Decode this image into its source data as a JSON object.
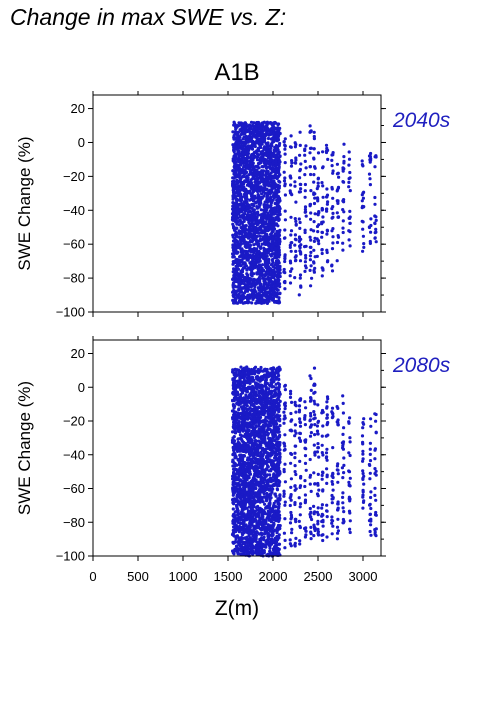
{
  "page": {
    "title": "Change in max SWE vs. Z:",
    "scenario": "A1B"
  },
  "colors": {
    "points": "#1a1ac6",
    "panel_label": "#1f1fbf",
    "axes": "#000000"
  },
  "chart_data": [
    {
      "type": "scatter",
      "panel_label": "2040s",
      "ylabel": "SWE Change (%)",
      "xlabel": "",
      "xlim": [
        0,
        3200
      ],
      "ylim": [
        -100,
        28
      ],
      "yticks": [
        20,
        0,
        -20,
        -40,
        -60,
        -80,
        -100
      ],
      "xticks": [
        0,
        500,
        1000,
        1500,
        2000,
        2500,
        3000
      ],
      "grid": false,
      "dense_band": {
        "x": [
          1550,
          2080
        ],
        "y": [
          -95,
          12
        ]
      },
      "strips": [
        {
          "x": 2130,
          "y": [
            -90,
            8
          ]
        },
        {
          "x": 2200,
          "y": [
            -85,
            5
          ]
        },
        {
          "x": 2250,
          "y": [
            -80,
            0
          ]
        },
        {
          "x": 2300,
          "y": [
            -90,
            8
          ]
        },
        {
          "x": 2360,
          "y": [
            -80,
            0
          ]
        },
        {
          "x": 2420,
          "y": [
            -85,
            10
          ]
        },
        {
          "x": 2460,
          "y": [
            -80,
            10
          ]
        },
        {
          "x": 2500,
          "y": [
            -75,
            -5
          ]
        },
        {
          "x": 2550,
          "y": [
            -80,
            -5
          ]
        },
        {
          "x": 2600,
          "y": [
            -75,
            0
          ]
        },
        {
          "x": 2660,
          "y": [
            -80,
            -5
          ]
        },
        {
          "x": 2720,
          "y": [
            -70,
            -5
          ]
        },
        {
          "x": 2780,
          "y": [
            -65,
            0
          ]
        },
        {
          "x": 2850,
          "y": [
            -65,
            -5
          ]
        },
        {
          "x": 3000,
          "y": [
            -65,
            -5
          ]
        },
        {
          "x": 3080,
          "y": [
            -60,
            -5
          ]
        },
        {
          "x": 3140,
          "y": [
            -60,
            -5
          ]
        }
      ]
    },
    {
      "type": "scatter",
      "panel_label": "2080s",
      "ylabel": "SWE Change (%)",
      "xlabel": "Z(m)",
      "xlim": [
        0,
        3200
      ],
      "ylim": [
        -100,
        28
      ],
      "yticks": [
        20,
        0,
        -20,
        -40,
        -60,
        -80,
        -100
      ],
      "xticks": [
        0,
        500,
        1000,
        1500,
        2000,
        2500,
        3000
      ],
      "xticklabels": [
        "0",
        "500",
        "1000",
        "1500",
        "2000",
        "2500",
        "3000"
      ],
      "grid": false,
      "dense_band": {
        "x": [
          1550,
          2080
        ],
        "y": [
          -100,
          12
        ]
      },
      "strips": [
        {
          "x": 2130,
          "y": [
            -98,
            5
          ]
        },
        {
          "x": 2200,
          "y": [
            -95,
            0
          ]
        },
        {
          "x": 2250,
          "y": [
            -95,
            -5
          ]
        },
        {
          "x": 2300,
          "y": [
            -95,
            5
          ]
        },
        {
          "x": 2360,
          "y": [
            -90,
            -5
          ]
        },
        {
          "x": 2420,
          "y": [
            -92,
            10
          ]
        },
        {
          "x": 2460,
          "y": [
            -90,
            12
          ]
        },
        {
          "x": 2500,
          "y": [
            -90,
            -5
          ]
        },
        {
          "x": 2550,
          "y": [
            -92,
            -10
          ]
        },
        {
          "x": 2600,
          "y": [
            -90,
            -5
          ]
        },
        {
          "x": 2660,
          "y": [
            -92,
            -10
          ]
        },
        {
          "x": 2720,
          "y": [
            -90,
            -10
          ]
        },
        {
          "x": 2780,
          "y": [
            -85,
            -5
          ]
        },
        {
          "x": 2850,
          "y": [
            -88,
            -10
          ]
        },
        {
          "x": 3000,
          "y": [
            -92,
            -15
          ]
        },
        {
          "x": 3080,
          "y": [
            -90,
            -18
          ]
        },
        {
          "x": 3140,
          "y": [
            -90,
            -15
          ]
        }
      ]
    }
  ]
}
